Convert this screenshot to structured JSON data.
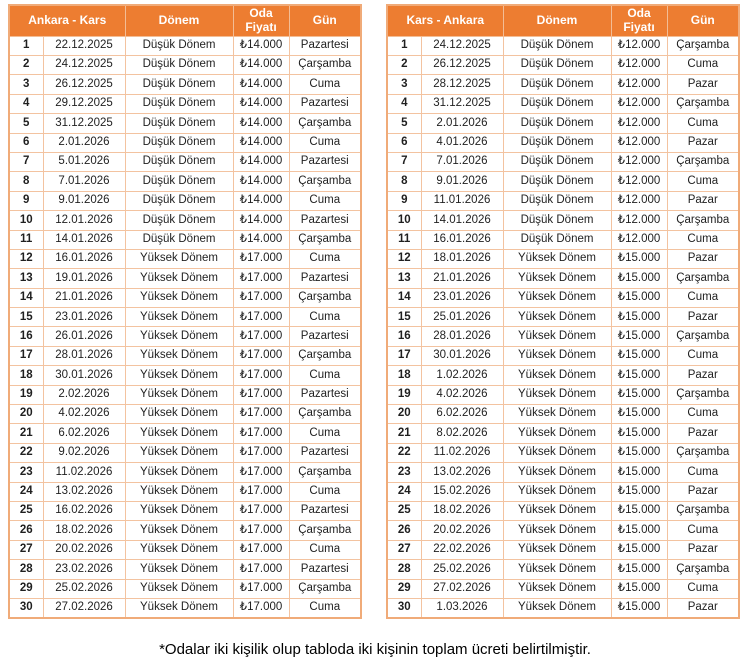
{
  "colors": {
    "header_bg": "#ED7D31",
    "header_text": "#FFFFFF",
    "cell_border": "#F3C3A0",
    "outer_border": "#F0AB79"
  },
  "footnote": "*Odalar iki kişilik olup tabloda iki kişinin toplam ücreti belirtilmiştir.",
  "tables": [
    {
      "route": "Ankara - Kars",
      "columns": [
        "Dönem",
        "Oda Fiyatı",
        "Gün"
      ],
      "rows": [
        [
          "1",
          "22.12.2025",
          "Düşük Dönem",
          "₺14.000",
          "Pazartesi"
        ],
        [
          "2",
          "24.12.2025",
          "Düşük Dönem",
          "₺14.000",
          "Çarşamba"
        ],
        [
          "3",
          "26.12.2025",
          "Düşük Dönem",
          "₺14.000",
          "Cuma"
        ],
        [
          "4",
          "29.12.2025",
          "Düşük Dönem",
          "₺14.000",
          "Pazartesi"
        ],
        [
          "5",
          "31.12.2025",
          "Düşük Dönem",
          "₺14.000",
          "Çarşamba"
        ],
        [
          "6",
          "2.01.2026",
          "Düşük Dönem",
          "₺14.000",
          "Cuma"
        ],
        [
          "7",
          "5.01.2026",
          "Düşük Dönem",
          "₺14.000",
          "Pazartesi"
        ],
        [
          "8",
          "7.01.2026",
          "Düşük Dönem",
          "₺14.000",
          "Çarşamba"
        ],
        [
          "9",
          "9.01.2026",
          "Düşük Dönem",
          "₺14.000",
          "Cuma"
        ],
        [
          "10",
          "12.01.2026",
          "Düşük Dönem",
          "₺14.000",
          "Pazartesi"
        ],
        [
          "11",
          "14.01.2026",
          "Düşük Dönem",
          "₺14.000",
          "Çarşamba"
        ],
        [
          "12",
          "16.01.2026",
          "Yüksek Dönem",
          "₺17.000",
          "Cuma"
        ],
        [
          "13",
          "19.01.2026",
          "Yüksek Dönem",
          "₺17.000",
          "Pazartesi"
        ],
        [
          "14",
          "21.01.2026",
          "Yüksek Dönem",
          "₺17.000",
          "Çarşamba"
        ],
        [
          "15",
          "23.01.2026",
          "Yüksek Dönem",
          "₺17.000",
          "Cuma"
        ],
        [
          "16",
          "26.01.2026",
          "Yüksek Dönem",
          "₺17.000",
          "Pazartesi"
        ],
        [
          "17",
          "28.01.2026",
          "Yüksek Dönem",
          "₺17.000",
          "Çarşamba"
        ],
        [
          "18",
          "30.01.2026",
          "Yüksek Dönem",
          "₺17.000",
          "Cuma"
        ],
        [
          "19",
          "2.02.2026",
          "Yüksek Dönem",
          "₺17.000",
          "Pazartesi"
        ],
        [
          "20",
          "4.02.2026",
          "Yüksek Dönem",
          "₺17.000",
          "Çarşamba"
        ],
        [
          "21",
          "6.02.2026",
          "Yüksek Dönem",
          "₺17.000",
          "Cuma"
        ],
        [
          "22",
          "9.02.2026",
          "Yüksek Dönem",
          "₺17.000",
          "Pazartesi"
        ],
        [
          "23",
          "11.02.2026",
          "Yüksek Dönem",
          "₺17.000",
          "Çarşamba"
        ],
        [
          "24",
          "13.02.2026",
          "Yüksek Dönem",
          "₺17.000",
          "Cuma"
        ],
        [
          "25",
          "16.02.2026",
          "Yüksek Dönem",
          "₺17.000",
          "Pazartesi"
        ],
        [
          "26",
          "18.02.2026",
          "Yüksek Dönem",
          "₺17.000",
          "Çarşamba"
        ],
        [
          "27",
          "20.02.2026",
          "Yüksek Dönem",
          "₺17.000",
          "Cuma"
        ],
        [
          "28",
          "23.02.2026",
          "Yüksek Dönem",
          "₺17.000",
          "Pazartesi"
        ],
        [
          "29",
          "25.02.2026",
          "Yüksek Dönem",
          "₺17.000",
          "Çarşamba"
        ],
        [
          "30",
          "27.02.2026",
          "Yüksek Dönem",
          "₺17.000",
          "Cuma"
        ]
      ]
    },
    {
      "route": "Kars - Ankara",
      "columns": [
        "Dönem",
        "Oda Fiyatı",
        "Gün"
      ],
      "rows": [
        [
          "1",
          "24.12.2025",
          "Düşük Dönem",
          "₺12.000",
          "Çarşamba"
        ],
        [
          "2",
          "26.12.2025",
          "Düşük Dönem",
          "₺12.000",
          "Cuma"
        ],
        [
          "3",
          "28.12.2025",
          "Düşük Dönem",
          "₺12.000",
          "Pazar"
        ],
        [
          "4",
          "31.12.2025",
          "Düşük Dönem",
          "₺12.000",
          "Çarşamba"
        ],
        [
          "5",
          "2.01.2026",
          "Düşük Dönem",
          "₺12.000",
          "Cuma"
        ],
        [
          "6",
          "4.01.2026",
          "Düşük Dönem",
          "₺12.000",
          "Pazar"
        ],
        [
          "7",
          "7.01.2026",
          "Düşük Dönem",
          "₺12.000",
          "Çarşamba"
        ],
        [
          "8",
          "9.01.2026",
          "Düşük Dönem",
          "₺12.000",
          "Cuma"
        ],
        [
          "9",
          "11.01.2026",
          "Düşük Dönem",
          "₺12.000",
          "Pazar"
        ],
        [
          "10",
          "14.01.2026",
          "Düşük Dönem",
          "₺12.000",
          "Çarşamba"
        ],
        [
          "11",
          "16.01.2026",
          "Düşük Dönem",
          "₺12.000",
          "Cuma"
        ],
        [
          "12",
          "18.01.2026",
          "Yüksek Dönem",
          "₺15.000",
          "Pazar"
        ],
        [
          "13",
          "21.01.2026",
          "Yüksek Dönem",
          "₺15.000",
          "Çarşamba"
        ],
        [
          "14",
          "23.01.2026",
          "Yüksek Dönem",
          "₺15.000",
          "Cuma"
        ],
        [
          "15",
          "25.01.2026",
          "Yüksek Dönem",
          "₺15.000",
          "Pazar"
        ],
        [
          "16",
          "28.01.2026",
          "Yüksek Dönem",
          "₺15.000",
          "Çarşamba"
        ],
        [
          "17",
          "30.01.2026",
          "Yüksek Dönem",
          "₺15.000",
          "Cuma"
        ],
        [
          "18",
          "1.02.2026",
          "Yüksek Dönem",
          "₺15.000",
          "Pazar"
        ],
        [
          "19",
          "4.02.2026",
          "Yüksek Dönem",
          "₺15.000",
          "Çarşamba"
        ],
        [
          "20",
          "6.02.2026",
          "Yüksek Dönem",
          "₺15.000",
          "Cuma"
        ],
        [
          "21",
          "8.02.2026",
          "Yüksek Dönem",
          "₺15.000",
          "Pazar"
        ],
        [
          "22",
          "11.02.2026",
          "Yüksek Dönem",
          "₺15.000",
          "Çarşamba"
        ],
        [
          "23",
          "13.02.2026",
          "Yüksek Dönem",
          "₺15.000",
          "Cuma"
        ],
        [
          "24",
          "15.02.2026",
          "Yüksek Dönem",
          "₺15.000",
          "Pazar"
        ],
        [
          "25",
          "18.02.2026",
          "Yüksek Dönem",
          "₺15.000",
          "Çarşamba"
        ],
        [
          "26",
          "20.02.2026",
          "Yüksek Dönem",
          "₺15.000",
          "Cuma"
        ],
        [
          "27",
          "22.02.2026",
          "Yüksek Dönem",
          "₺15.000",
          "Pazar"
        ],
        [
          "28",
          "25.02.2026",
          "Yüksek Dönem",
          "₺15.000",
          "Çarşamba"
        ],
        [
          "29",
          "27.02.2026",
          "Yüksek Dönem",
          "₺15.000",
          "Cuma"
        ],
        [
          "30",
          "1.03.2026",
          "Yüksek Dönem",
          "₺15.000",
          "Pazar"
        ]
      ]
    }
  ]
}
